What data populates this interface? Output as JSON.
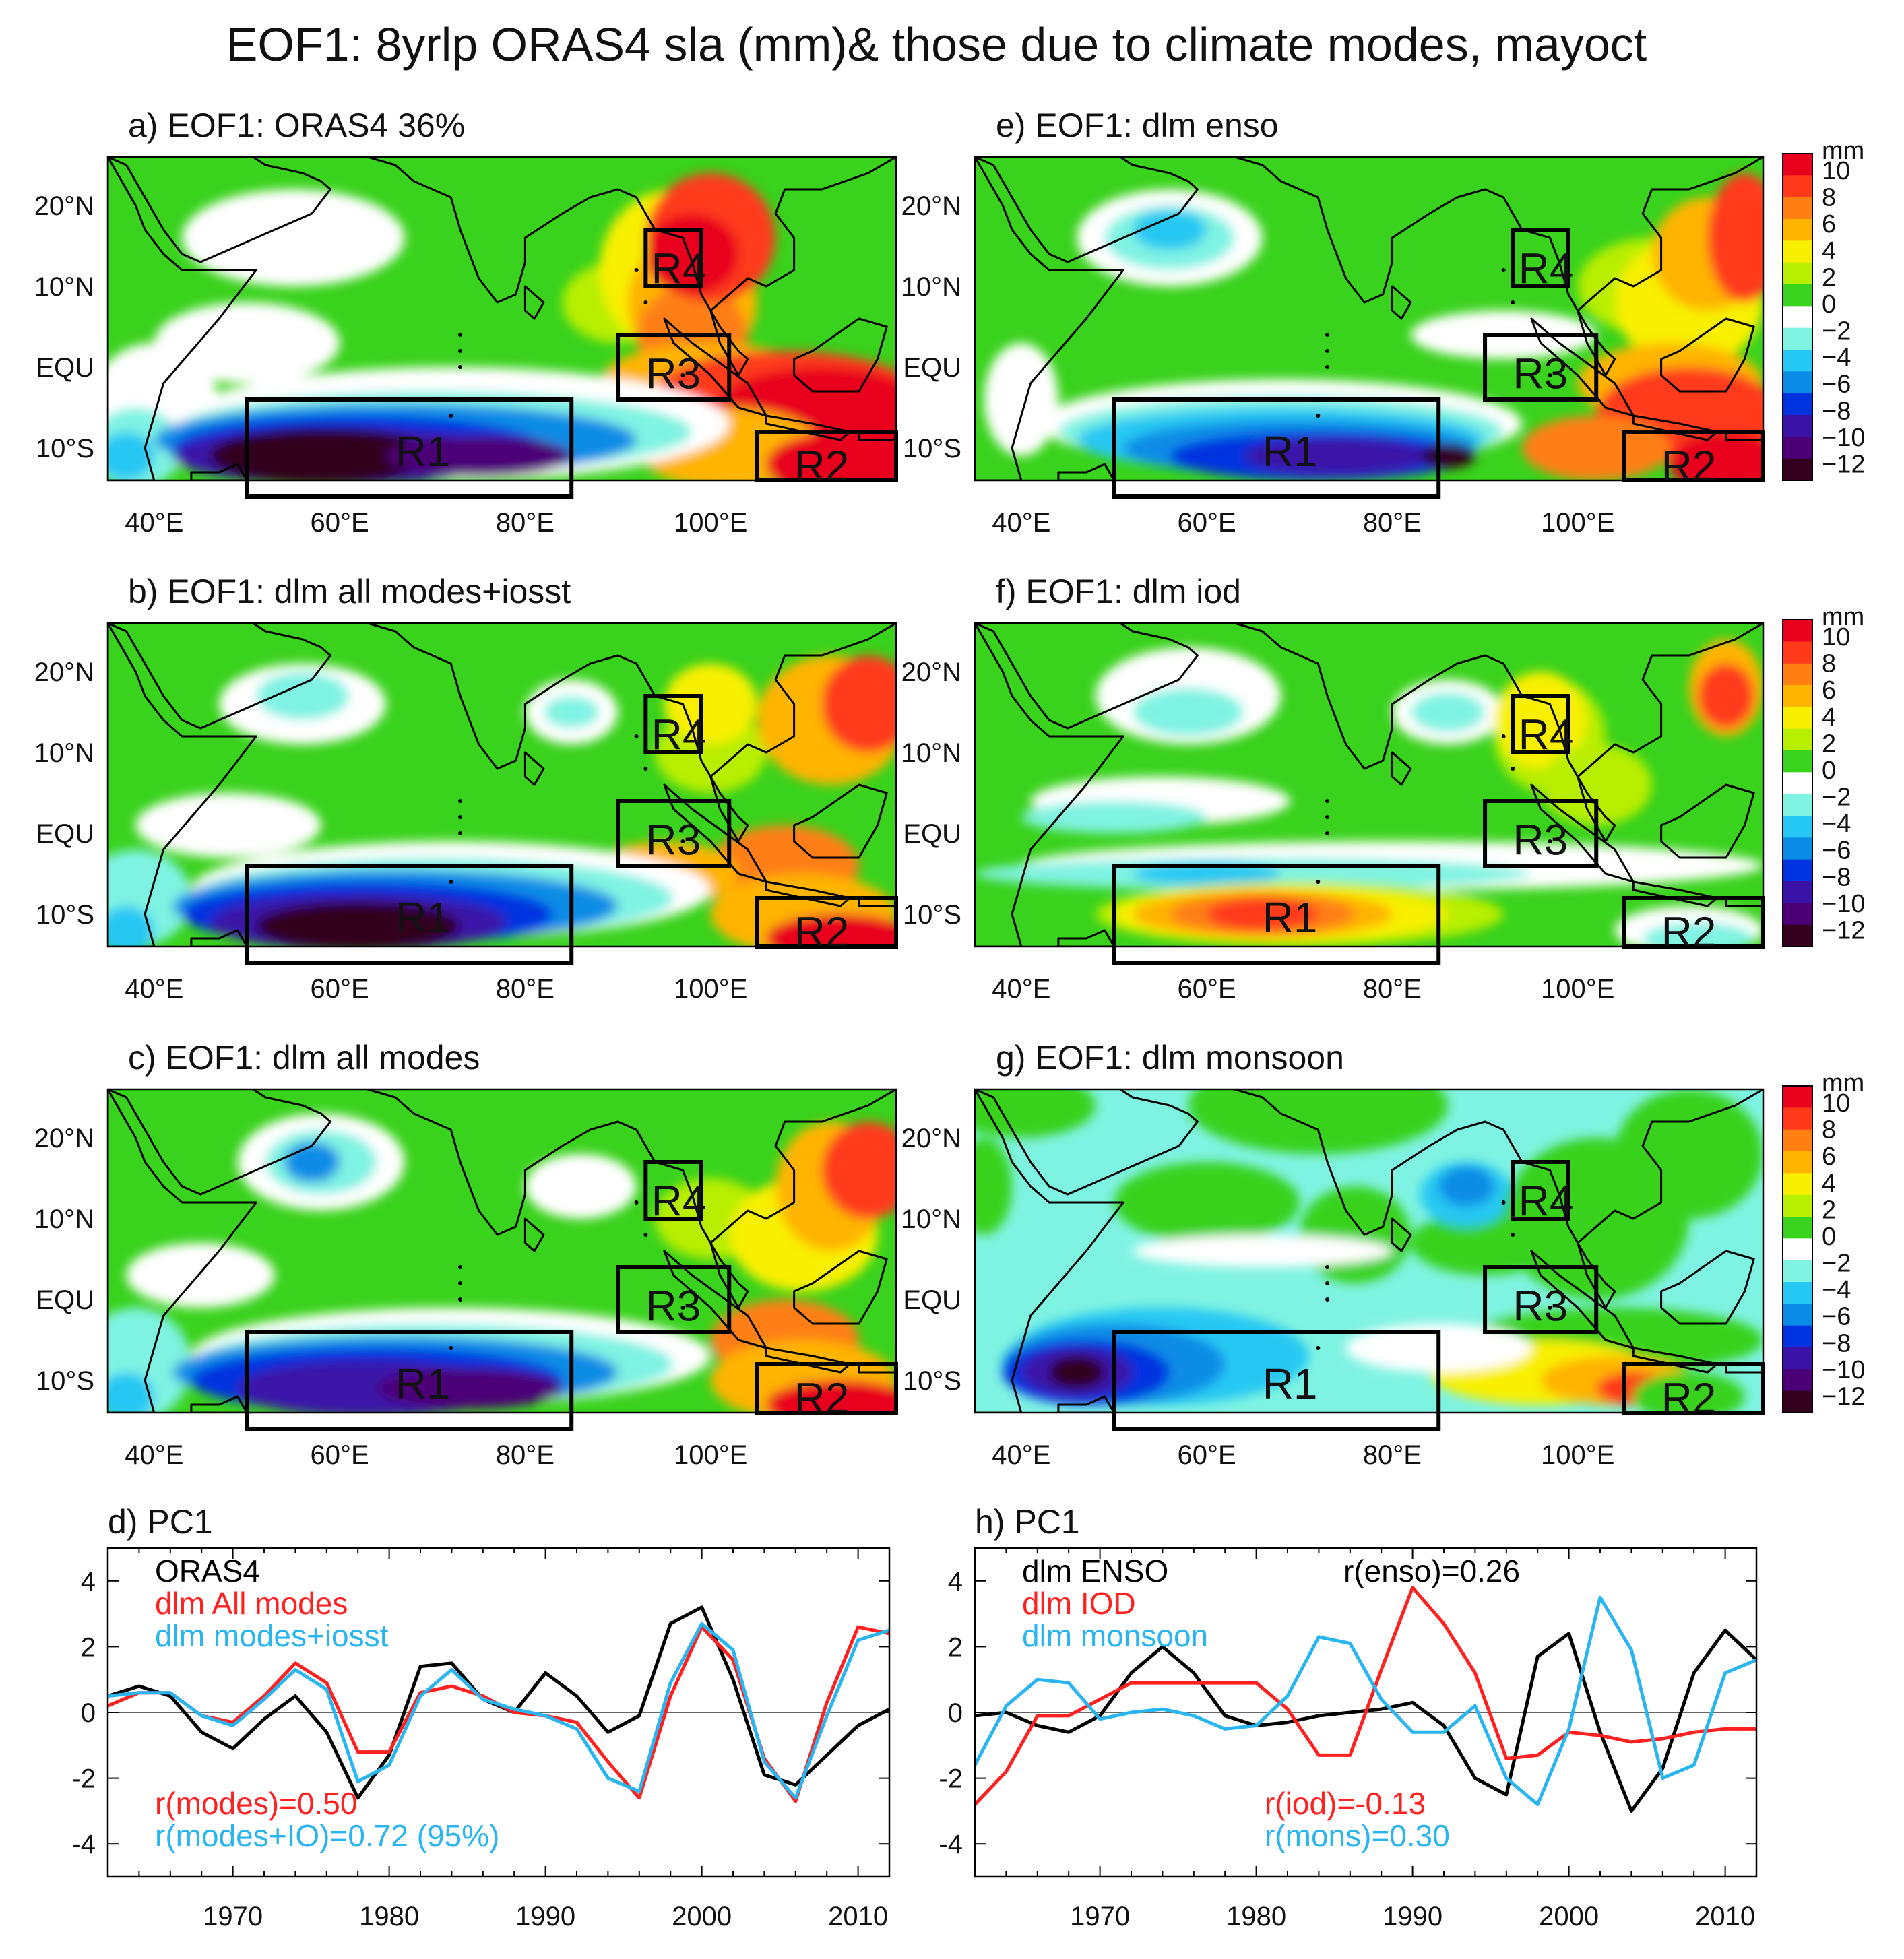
{
  "figure": {
    "title": "EOF1: 8yrlp ORAS4 sla (mm)& those due to climate modes, mayoct"
  },
  "colors": {
    "black": "#000000",
    "red": "#ff2020",
    "blue": "#29b5f0",
    "land": "#ffffff"
  },
  "colorbar": {
    "unit": "mm",
    "levels": [
      "10",
      "8",
      "6",
      "4",
      "2",
      "0",
      "−2",
      "−4",
      "−6",
      "−8",
      "−10",
      "−12"
    ],
    "colors": [
      "#e8001c",
      "#ff3a1a",
      "#ff7f12",
      "#ffb400",
      "#f8f000",
      "#b8ee00",
      "#39d21c",
      "#ffffff",
      "#7ff3e2",
      "#25c8f3",
      "#0a8ce6",
      "#0033e0",
      "#3a12a8",
      "#4b0077",
      "#33001e"
    ]
  },
  "map_axes": {
    "lat_labels": [
      "20°N",
      "10°N",
      "EQU",
      "10°S"
    ],
    "lon_labels": [
      "40°E",
      "60°E",
      "80°E",
      "100°E"
    ]
  },
  "region_labels": {
    "r1": "R1",
    "r2": "R2",
    "r3": "R3",
    "r4": "R4"
  },
  "panels": {
    "a": {
      "title": "a) EOF1: ORAS4 36%"
    },
    "b": {
      "title": "b) EOF1: dlm all modes+iosst"
    },
    "c": {
      "title": "c) EOF1: dlm all modes"
    },
    "e": {
      "title": "e) EOF1: dlm enso"
    },
    "f": {
      "title": "f) EOF1: dlm iod"
    },
    "g": {
      "title": "g) EOF1: dlm monsoon"
    }
  },
  "chart_data": [
    {
      "type": "line",
      "title": "d) PC1",
      "x": [
        1962,
        1964,
        1966,
        1968,
        1970,
        1972,
        1974,
        1976,
        1978,
        1980,
        1982,
        1984,
        1986,
        1988,
        1990,
        1992,
        1994,
        1996,
        1998,
        2000,
        2002,
        2004,
        2006,
        2008,
        2010,
        2012
      ],
      "xlim": [
        1962,
        2012
      ],
      "ylim": [
        -5,
        5
      ],
      "xticks": [
        1970,
        1980,
        1990,
        2000,
        2010
      ],
      "yticks": [
        -4,
        -2,
        0,
        2,
        4
      ],
      "series": [
        {
          "name": "ORAS4",
          "color": "#000000",
          "values": [
            0.5,
            0.8,
            0.5,
            -0.6,
            -1.1,
            -0.2,
            0.5,
            -0.6,
            -2.6,
            -1.3,
            1.4,
            1.5,
            0.4,
            0.0,
            1.2,
            0.5,
            -0.6,
            -0.1,
            2.7,
            3.2,
            1.0,
            -1.9,
            -2.2,
            -1.3,
            -0.4,
            0.1
          ]
        },
        {
          "name": "dlm All modes",
          "color": "#ff2020",
          "values": [
            0.2,
            0.6,
            0.6,
            -0.1,
            -0.3,
            0.5,
            1.5,
            0.9,
            -1.2,
            -1.2,
            0.6,
            0.8,
            0.5,
            0.0,
            -0.1,
            -0.3,
            -1.5,
            -2.6,
            0.5,
            2.6,
            1.6,
            -1.4,
            -2.7,
            0.3,
            2.6,
            2.4
          ]
        },
        {
          "name": "dlm modes+iosst",
          "color": "#29b5f0",
          "values": [
            0.5,
            0.6,
            0.6,
            -0.1,
            -0.4,
            0.4,
            1.3,
            0.7,
            -2.1,
            -1.6,
            0.5,
            1.3,
            0.4,
            0.1,
            -0.1,
            -0.5,
            -2.0,
            -2.4,
            0.9,
            2.7,
            1.9,
            -1.5,
            -2.6,
            -0.1,
            2.2,
            2.5
          ]
        }
      ],
      "annotations": [
        "r(modes)=0.50",
        "r(modes+IO)=0.72 (95%)"
      ]
    },
    {
      "type": "line",
      "title": "h) PC1",
      "x": [
        1962,
        1964,
        1966,
        1968,
        1970,
        1972,
        1974,
        1976,
        1978,
        1980,
        1982,
        1984,
        1986,
        1988,
        1990,
        1992,
        1994,
        1996,
        1998,
        2000,
        2002,
        2004,
        2006,
        2008,
        2010,
        2012
      ],
      "xlim": [
        1962,
        2012
      ],
      "ylim": [
        -5,
        5
      ],
      "xticks": [
        1970,
        1980,
        1990,
        2000,
        2010
      ],
      "yticks": [
        -4,
        -2,
        0,
        2,
        4
      ],
      "series": [
        {
          "name": "dlm ENSO",
          "color": "#000000",
          "values": [
            -0.1,
            0.0,
            -0.4,
            -0.6,
            -0.1,
            1.2,
            2.0,
            1.2,
            -0.1,
            -0.4,
            -0.3,
            -0.1,
            0.0,
            0.1,
            0.3,
            -0.4,
            -2.0,
            -2.5,
            1.7,
            2.4,
            -0.6,
            -3.0,
            -1.7,
            1.2,
            2.5,
            1.6
          ]
        },
        {
          "name": "dlm IOD",
          "color": "#ff2020",
          "values": [
            -2.8,
            -1.8,
            -0.1,
            -0.1,
            0.4,
            0.9,
            0.9,
            0.9,
            0.9,
            0.9,
            0.1,
            -1.3,
            -1.3,
            1.3,
            3.8,
            2.7,
            1.2,
            -1.4,
            -1.3,
            -0.6,
            -0.7,
            -0.9,
            -0.8,
            -0.6,
            -0.5,
            -0.5
          ]
        },
        {
          "name": "dlm monsoon",
          "color": "#29b5f0",
          "values": [
            -1.6,
            0.2,
            1.0,
            0.9,
            -0.2,
            0.0,
            0.1,
            -0.1,
            -0.5,
            -0.4,
            0.5,
            2.3,
            2.1,
            0.4,
            -0.6,
            -0.6,
            0.2,
            -2.0,
            -2.8,
            -0.5,
            3.5,
            1.9,
            -2.0,
            -1.6,
            1.2,
            1.6
          ]
        }
      ],
      "annotations": [
        "r(enso)=0.26",
        "r(iod)=-0.13",
        "r(mons)=0.30"
      ]
    }
  ]
}
